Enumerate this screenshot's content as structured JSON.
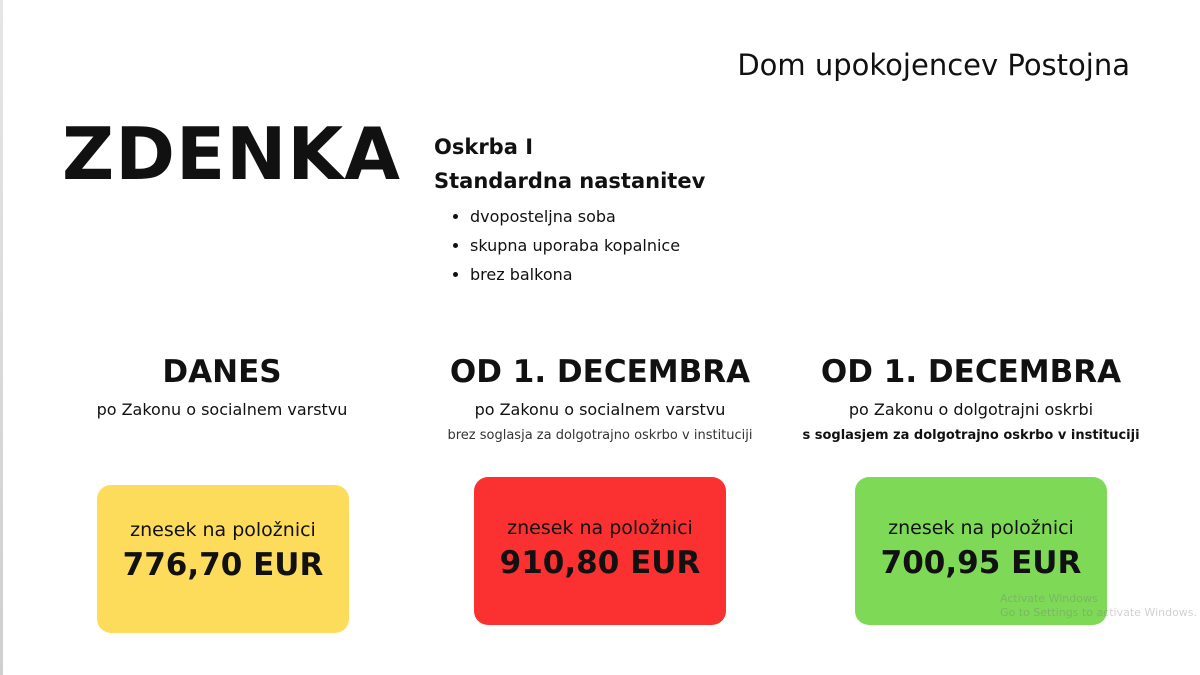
{
  "organization": "Dom upokojencev Postojna",
  "person_name": "ZDENKA",
  "care": {
    "level": "Oskrba I",
    "accommodation": "Standardna nastanitev",
    "features": [
      "dvoposteljna soba",
      "skupna uporaba kopalnice",
      "brez balkona"
    ]
  },
  "columns": [
    {
      "heading": "DANES",
      "law": "po Zakonu o socialnem varstvu",
      "note": "",
      "box_label": "znesek na položnici",
      "amount": "776,70 EUR",
      "color": "#fddc5c"
    },
    {
      "heading": "OD 1. DECEMBRA",
      "law": "po Zakonu o socialnem varstvu",
      "note": "brez soglasja za dolgotrajno oskrbo v instituciji",
      "box_label": "znesek na položnici",
      "amount": "910,80 EUR",
      "color": "#fb3131"
    },
    {
      "heading": "OD 1. DECEMBRA",
      "law": "po Zakonu o dolgotrajni oskrbi",
      "note": "s soglasjem za dolgotrajno oskrbo v instituciji",
      "box_label": "znesek na položnici",
      "amount": "700,95 EUR",
      "color": "#7ed957"
    }
  ],
  "watermark": {
    "line1": "Activate Windows",
    "line2": "Go to Settings to activate Windows."
  }
}
